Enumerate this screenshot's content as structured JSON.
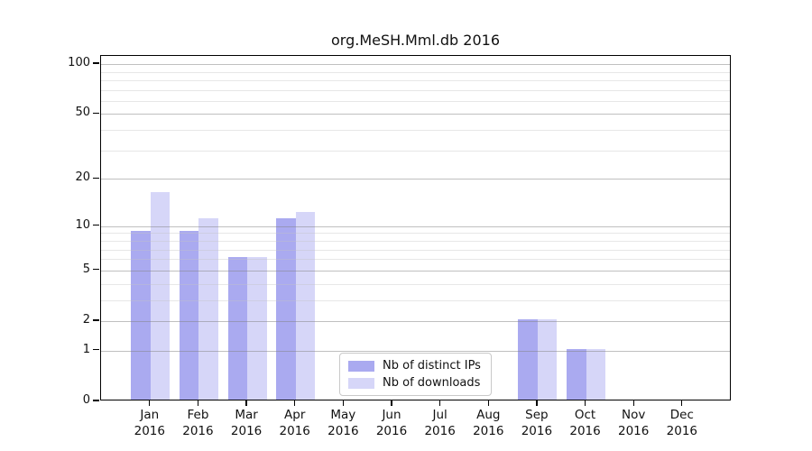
{
  "title": "org.MeSH.Mml.db 2016",
  "chart_data": {
    "type": "bar",
    "title": "org.MeSH.Mml.db 2016",
    "xlabel": "",
    "ylabel": "",
    "categories": [
      "Jan 2016",
      "Feb 2016",
      "Mar 2016",
      "Apr 2016",
      "May 2016",
      "Jun 2016",
      "Jul 2016",
      "Aug 2016",
      "Sep 2016",
      "Oct 2016",
      "Nov 2016",
      "Dec 2016"
    ],
    "series": [
      {
        "name": "Nb of distinct IPs",
        "color": "#aaaaf0",
        "values": [
          9,
          9,
          6,
          11,
          0,
          0,
          0,
          0,
          2,
          1,
          0,
          0
        ]
      },
      {
        "name": "Nb of downloads",
        "color": "#d6d6f8",
        "values": [
          16,
          11,
          6,
          12,
          0,
          0,
          0,
          0,
          2,
          1,
          0,
          0
        ]
      }
    ],
    "y_scale": "log1p",
    "y_ticks": [
      0,
      1,
      2,
      5,
      10,
      20,
      50,
      100
    ],
    "y_minor_gridlines": [
      3,
      4,
      6,
      7,
      8,
      9,
      30,
      40,
      60,
      70,
      80,
      90
    ],
    "ylim": [
      0,
      112
    ],
    "grid": "on",
    "legend_position": "inside lower center"
  },
  "legend": {
    "items": [
      {
        "label": "Nb of distinct IPs",
        "swatch": "#aaaaf0"
      },
      {
        "label": "Nb of downloads",
        "swatch": "#d6d6f8"
      }
    ]
  },
  "colors": {
    "bar_distinct_ips": "#aaaaf0",
    "bar_downloads": "#d6d6f8",
    "grid_major": "rgba(130,130,130,0.50)",
    "grid_minor": "rgba(195,195,195,0.40)",
    "axis": "#000000",
    "legend_border": "#c9c9c9",
    "text": "#111111",
    "background": "#ffffff"
  }
}
